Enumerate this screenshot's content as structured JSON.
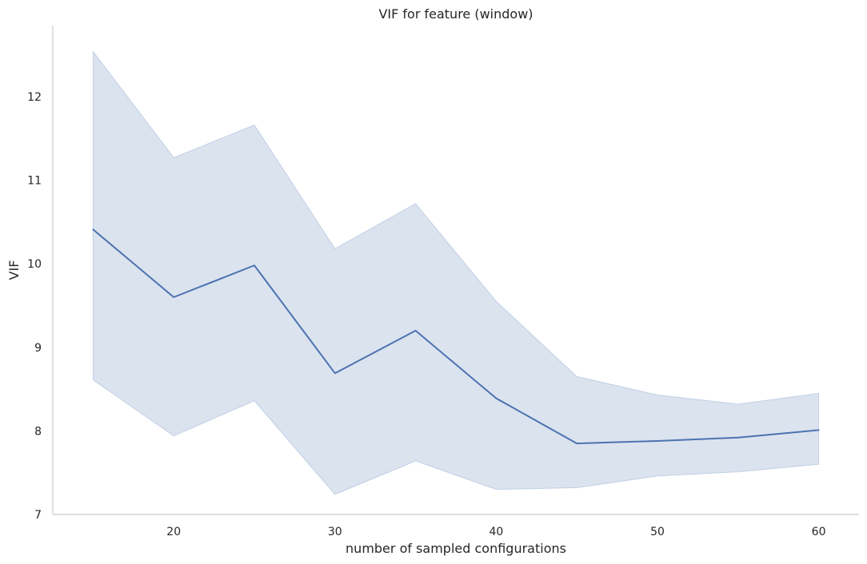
{
  "chart_data": {
    "type": "line",
    "title": "VIF for feature (window)",
    "xlabel": "number of sampled configurations",
    "ylabel": "VIF",
    "xlim": [
      12.5,
      62.5
    ],
    "ylim": [
      7,
      12.85
    ],
    "xticks": [
      20,
      30,
      40,
      50,
      60
    ],
    "yticks": [
      7,
      8,
      9,
      10,
      11,
      12
    ],
    "grid": false,
    "legend": "none",
    "colors": {
      "line": "#4c72b0",
      "band": "#4c72b0"
    },
    "series": [
      {
        "x": [
          15,
          20,
          25,
          30,
          35,
          40,
          45,
          50,
          55,
          60
        ],
        "values": [
          10.41,
          9.6,
          9.98,
          8.69,
          9.2,
          8.39,
          7.85,
          7.88,
          7.92,
          8.01
        ],
        "ci_upper": [
          12.54,
          11.27,
          11.66,
          10.18,
          10.72,
          9.55,
          8.65,
          8.43,
          8.32,
          8.45
        ],
        "ci_lower": [
          8.61,
          7.94,
          8.36,
          7.24,
          7.64,
          7.3,
          7.32,
          7.46,
          7.51,
          7.6
        ]
      }
    ]
  }
}
